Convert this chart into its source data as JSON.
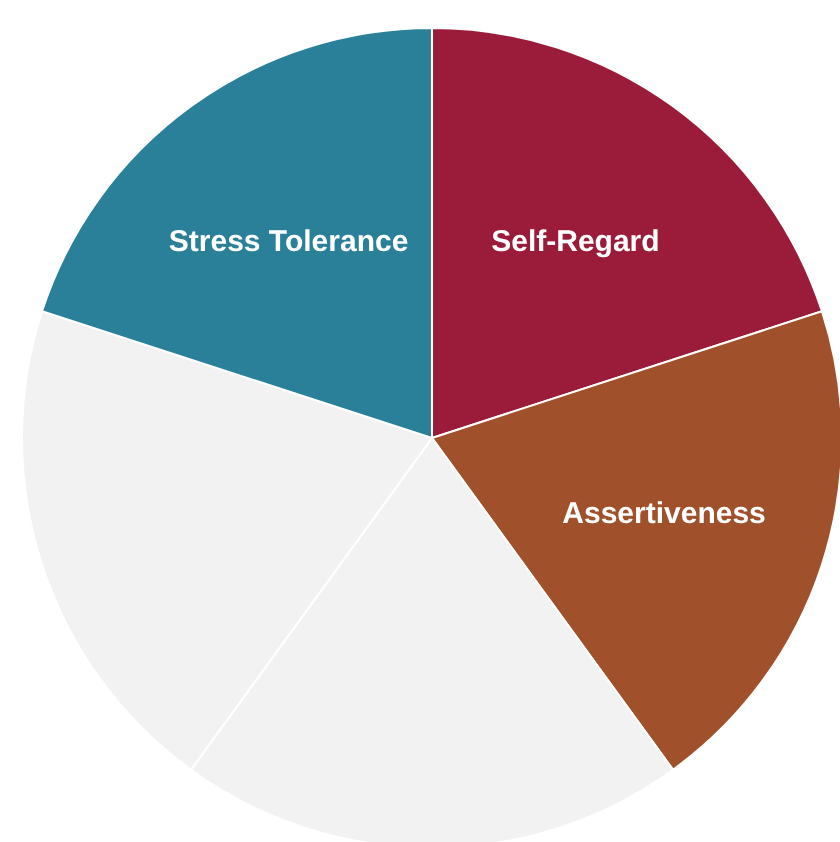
{
  "chart_data": {
    "type": "pie",
    "categories": [
      "Self-Regard",
      "Assertiveness",
      null,
      null,
      "Stress Tolerance"
    ],
    "values": [
      20,
      20,
      20,
      20,
      20
    ],
    "colors": [
      "#9b1b3a",
      "#a0502a",
      "#f2f2f2",
      "#f2f2f2",
      "#2a8098"
    ]
  }
}
